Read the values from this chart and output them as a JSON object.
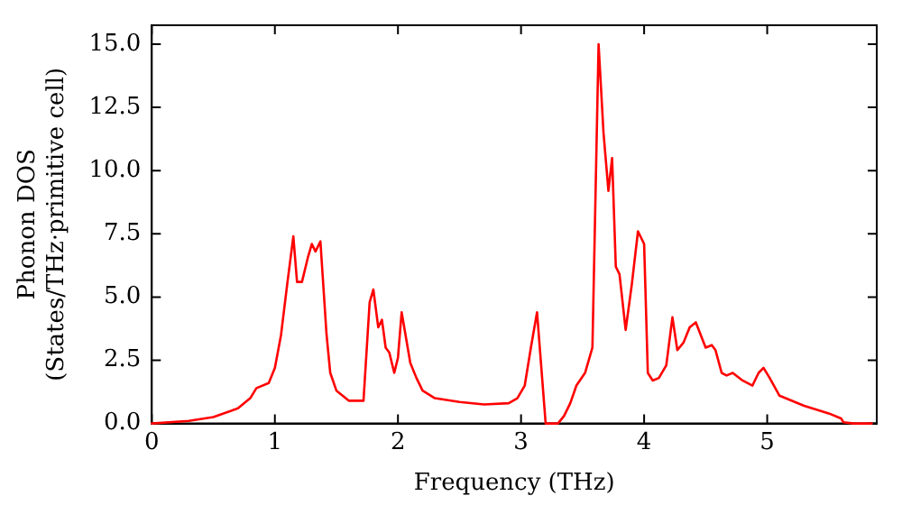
{
  "chart_data": {
    "type": "line",
    "xlabel": "Frequency (THz)",
    "ylabel": "Phonon DOS\n(States/THz·primitive cell)",
    "xlim": [
      0,
      5.89
    ],
    "xticks": [
      0,
      1,
      2,
      3,
      4,
      5
    ],
    "ylim": [
      0,
      15.75
    ],
    "yticks": [
      {
        "value": 0,
        "label": "0.0"
      },
      {
        "value": 2.5,
        "label": "2.5"
      },
      {
        "value": 5,
        "label": "5.0"
      },
      {
        "value": 7.5,
        "label": "7.5"
      },
      {
        "value": 10,
        "label": "10.0"
      },
      {
        "value": 12.5,
        "label": "12.5"
      },
      {
        "value": 15,
        "label": "15.0"
      }
    ],
    "grid": false,
    "legend": false,
    "marker": "none",
    "line_style": "solid",
    "series": [
      {
        "color": "#ff0000",
        "x": [
          0,
          0.3,
          0.5,
          0.7,
          0.8,
          0.85,
          0.95,
          1.0,
          1.05,
          1.1,
          1.15,
          1.18,
          1.22,
          1.27,
          1.3,
          1.33,
          1.37,
          1.42,
          1.45,
          1.5,
          1.6,
          1.72,
          1.77,
          1.8,
          1.84,
          1.87,
          1.9,
          1.93,
          1.97,
          2.0,
          2.03,
          2.1,
          2.15,
          2.2,
          2.3,
          2.5,
          2.7,
          2.9,
          2.97,
          3.03,
          3.08,
          3.13,
          3.2,
          3.3,
          3.35,
          3.4,
          3.45,
          3.52,
          3.58,
          3.63,
          3.67,
          3.71,
          3.74,
          3.77,
          3.8,
          3.85,
          3.9,
          3.95,
          4.0,
          4.03,
          4.07,
          4.12,
          4.18,
          4.23,
          4.27,
          4.32,
          4.37,
          4.42,
          4.5,
          4.55,
          4.58,
          4.63,
          4.67,
          4.72,
          4.8,
          4.88,
          4.93,
          4.97,
          5.02,
          5.1,
          5.3,
          5.5,
          5.6,
          5.62,
          5.7,
          5.85
        ],
        "values": [
          0,
          0.1,
          0.25,
          0.6,
          1.0,
          1.4,
          1.6,
          2.2,
          3.5,
          5.5,
          7.4,
          5.6,
          5.6,
          6.6,
          7.1,
          6.8,
          7.2,
          3.5,
          2.0,
          1.3,
          0.9,
          0.9,
          4.8,
          5.3,
          3.8,
          4.1,
          3.0,
          2.8,
          2.0,
          2.6,
          4.4,
          2.4,
          1.8,
          1.3,
          1.0,
          0.85,
          0.75,
          0.8,
          1.0,
          1.5,
          3.0,
          4.4,
          0,
          0,
          0.3,
          0.8,
          1.5,
          2.0,
          3.0,
          15.0,
          11.5,
          9.2,
          10.5,
          6.2,
          5.9,
          3.7,
          5.5,
          7.6,
          7.1,
          2.0,
          1.7,
          1.8,
          2.3,
          4.2,
          2.9,
          3.2,
          3.8,
          4.0,
          3.0,
          3.1,
          2.9,
          2.0,
          1.9,
          2.0,
          1.7,
          1.5,
          2.0,
          2.2,
          1.8,
          1.1,
          0.7,
          0.4,
          0.2,
          0.05,
          0,
          0
        ]
      }
    ]
  }
}
